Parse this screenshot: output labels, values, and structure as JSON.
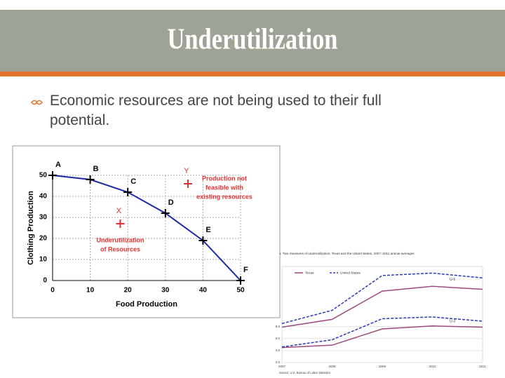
{
  "header": {
    "title": "Underutilization"
  },
  "bullet": "Economic resources are not being used to their full potential.",
  "chart_data": [
    {
      "type": "line",
      "x": [
        0,
        10,
        20,
        30,
        40,
        50
      ],
      "values": [
        50,
        48,
        42,
        32,
        19,
        0
      ],
      "point_labels": [
        "A",
        "B",
        "C",
        "D",
        "E",
        "F"
      ],
      "color": "#1c2aa6",
      "xlim": [
        0,
        50
      ],
      "ylim": [
        0,
        50
      ],
      "xticks": [
        0,
        10,
        20,
        30,
        40,
        50
      ],
      "yticks": [
        0,
        10,
        20,
        30,
        40,
        50
      ],
      "x_label": "Food Production",
      "y_label": "Clothing Production",
      "grid": true,
      "annotations": [
        {
          "label": "X",
          "x": 18,
          "y": 27,
          "text": [
            "Underutilization",
            "of Resources"
          ],
          "color": "#e03030"
        },
        {
          "label": "Y",
          "x": 36,
          "y": 46,
          "text": [
            "Production not",
            "feasible with",
            "existing resources"
          ],
          "color": "#e03030"
        }
      ]
    },
    {
      "type": "line",
      "title": "1. Two measures of underutilization, Texas and the United States, 2007–2011 annual averages",
      "categories": [
        "2007",
        "2008",
        "2009",
        "2010",
        "2011"
      ],
      "measures": [
        "U-6",
        "U-3"
      ],
      "series": [
        {
          "name": "Texas",
          "color": "#9b4a7e",
          "dashed": false,
          "values": [
            [
              7.9,
              9.2,
              13.9,
              14.7,
              14.2
            ],
            [
              4.5,
              4.9,
              7.6,
              8.1,
              7.9
            ]
          ]
        },
        {
          "name": "United States",
          "color": "#2a3bb8",
          "dashed": true,
          "values": [
            [
              8.5,
              10.7,
              16.5,
              16.9,
              16.1
            ],
            [
              4.6,
              5.8,
              9.3,
              9.6,
              8.9
            ]
          ]
        }
      ],
      "ylim": [
        2,
        18
      ],
      "yticks": [
        {
          "value": 2,
          "label": "2.0"
        },
        {
          "value": 4,
          "label": "4.0"
        },
        {
          "value": 6,
          "label": "6.0"
        },
        {
          "value": 8,
          "label": "8.0"
        }
      ],
      "source": "Source: U.S. Bureau of Labor Statistics"
    }
  ]
}
